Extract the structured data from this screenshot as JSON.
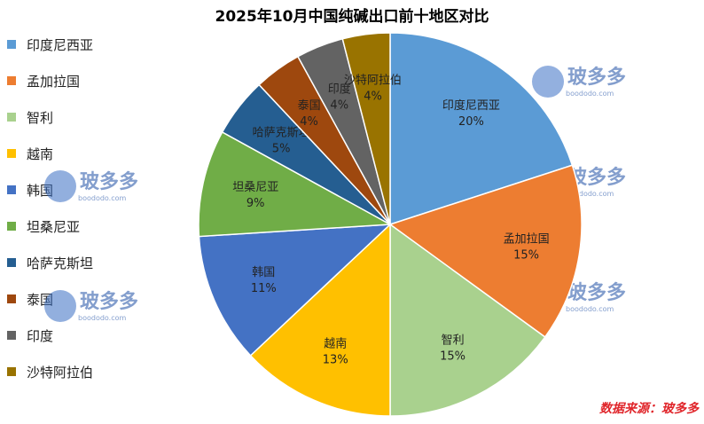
{
  "chart_data": {
    "type": "pie",
    "title": "2025年10月中国纯碱出口前十地区对比",
    "slices": [
      {
        "label": "印度尼西亚",
        "value": 20,
        "pct_label": "20%",
        "color": "#5b9bd5"
      },
      {
        "label": "孟加拉国",
        "value": 15,
        "pct_label": "15%",
        "color": "#ed7d31"
      },
      {
        "label": "智利",
        "value": 15,
        "pct_label": "15%",
        "color": "#a9d18e"
      },
      {
        "label": "越南",
        "value": 13,
        "pct_label": "13%",
        "color": "#ffc000"
      },
      {
        "label": "韩国",
        "value": 11,
        "pct_label": "11%",
        "color": "#4472c4"
      },
      {
        "label": "坦桑尼亚",
        "value": 9,
        "pct_label": "9%",
        "color": "#70ad47"
      },
      {
        "label": "哈萨克斯坦",
        "value": 5,
        "pct_label": "5%",
        "color": "#255e91"
      },
      {
        "label": "泰国",
        "value": 4,
        "pct_label": "4%",
        "color": "#9e480e"
      },
      {
        "label": "印度",
        "value": 4,
        "pct_label": "4%",
        "color": "#636363"
      },
      {
        "label": "沙特阿拉伯",
        "value": 4,
        "pct_label": "4%",
        "color": "#997300"
      }
    ],
    "legend_position": "left"
  },
  "source_text": "数据来源：玻多多",
  "watermark": {
    "brand": "玻多多",
    "site": "boododo.com"
  }
}
